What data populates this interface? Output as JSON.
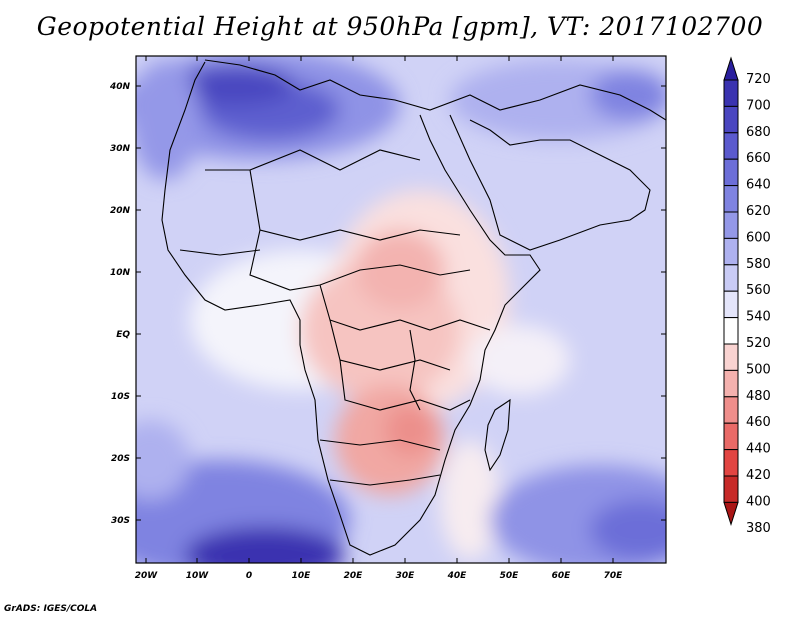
{
  "title": "Geopotential Height at 950hPa [gpm], VT: 2017102700",
  "footer": "GrADS: IGES/COLA",
  "map": {
    "lon_labels": [
      "20W",
      "10W",
      "0",
      "10E",
      "20E",
      "30E",
      "40E",
      "50E",
      "60E",
      "70E"
    ],
    "lat_labels": [
      "40N",
      "30N",
      "20N",
      "10N",
      "EQ",
      "10S",
      "20S",
      "30S"
    ]
  },
  "colorbar": {
    "levels": [
      "720",
      "700",
      "680",
      "660",
      "640",
      "620",
      "600",
      "580",
      "560",
      "540",
      "520",
      "500",
      "480",
      "460",
      "440",
      "420",
      "400",
      "380"
    ],
    "colors": [
      "#2a1f9e",
      "#3a33b0",
      "#4a46c0",
      "#5b5ace",
      "#6c6ed8",
      "#7f83e1",
      "#9498e8",
      "#aeb1ef",
      "#c9cbf5",
      "#e4e5fa",
      "#ffffff",
      "#f9d3d1",
      "#f4b1ae",
      "#ef8e8b",
      "#e96a67",
      "#e24542",
      "#c72a28",
      "#a91515"
    ]
  }
}
